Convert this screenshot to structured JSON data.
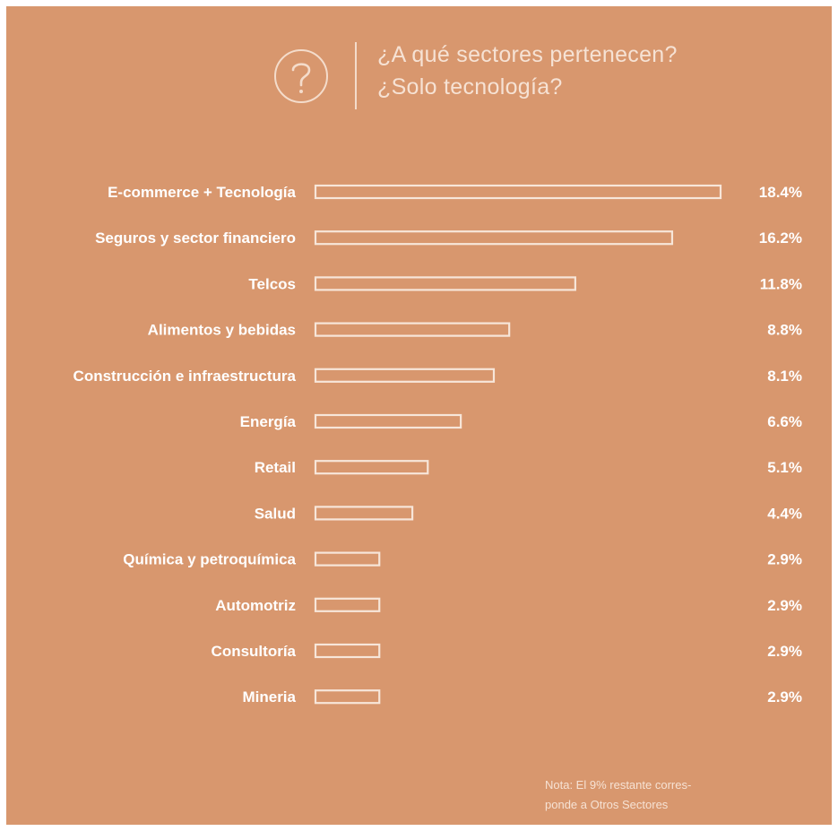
{
  "header": {
    "title_line1": "¿A qué sectores pertenecen?",
    "title_line2": "¿Solo tecnología?",
    "icon": "question-circle-icon"
  },
  "colors": {
    "background": "#d8976e",
    "bar_outline": "#f7e6d9",
    "label_text": "#ffffff",
    "light_text": "#f6e2d4"
  },
  "chart_data": {
    "type": "bar",
    "orientation": "horizontal",
    "categories": [
      "E-commerce + Tecnología",
      "Seguros y sector financiero",
      "Telcos",
      "Alimentos y bebidas",
      "Construcción e infraestructura",
      "Energía",
      "Retail",
      "Salud",
      "Química y petroquímica",
      "Automotriz",
      "Consultoría",
      "Mineria"
    ],
    "values": [
      18.4,
      16.2,
      11.8,
      8.8,
      8.1,
      6.6,
      5.1,
      4.4,
      2.9,
      2.9,
      2.9,
      2.9
    ],
    "value_labels": [
      "18.4%",
      "16.2%",
      "11.8%",
      "8.8%",
      "8.1%",
      "6.6%",
      "5.1%",
      "4.4%",
      "2.9%",
      "2.9%",
      "2.9%",
      "2.9%"
    ],
    "bar_style": "outline",
    "grid": false,
    "legend": "none"
  },
  "note": {
    "line1": "Nota: El 9% restante corres-",
    "line2": "ponde a Otros Sectores"
  }
}
